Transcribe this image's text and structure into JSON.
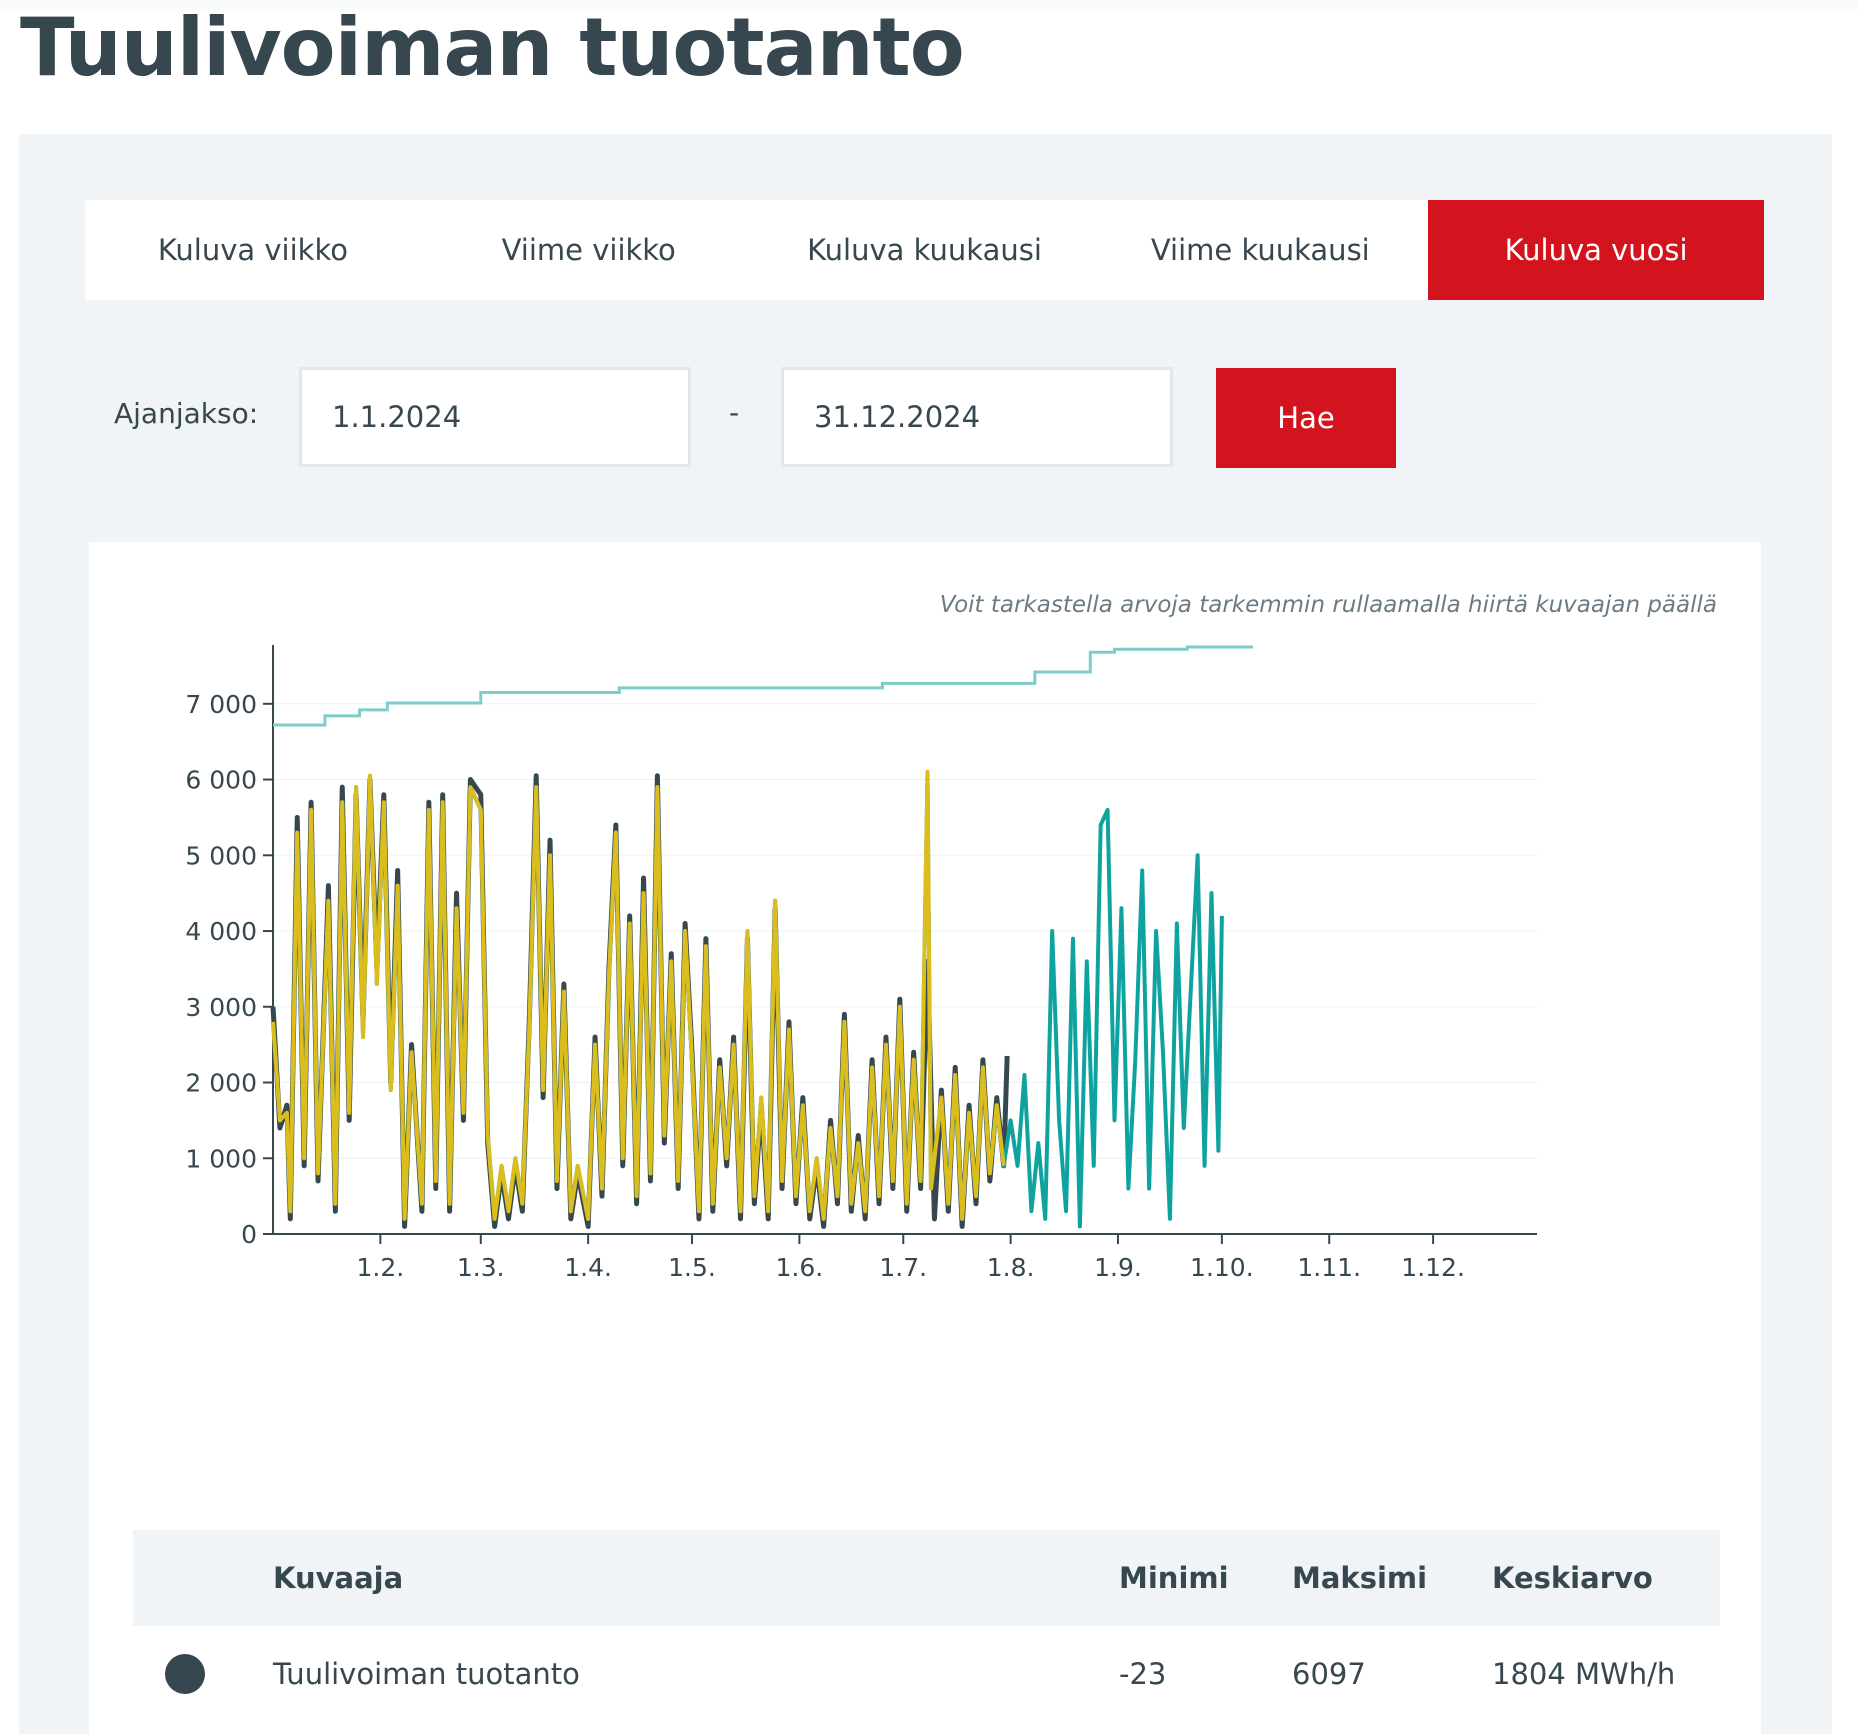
{
  "page": {
    "title": "Tuulivoiman tuotanto"
  },
  "tabs": [
    {
      "label": "Kuluva viikko",
      "active": false
    },
    {
      "label": "Viime viikko",
      "active": false
    },
    {
      "label": "Kuluva kuukausi",
      "active": false
    },
    {
      "label": "Viime kuukausi",
      "active": false
    },
    {
      "label": "Kuluva vuosi",
      "active": true
    }
  ],
  "period": {
    "label": "Ajanjakso:",
    "from": "1.1.2024",
    "separator": "-",
    "to": "31.12.2024",
    "search_label": "Hae"
  },
  "chart": {
    "hint": "Voit tarkastella arvoja tarkemmin rullaamalla hiirtä kuvaajan päällä"
  },
  "colors": {
    "accent": "#d3141f",
    "text": "#37474f",
    "panel": "#f1f4f6",
    "production": "#37474f",
    "forecast_teal": "#0fa3a0",
    "forecast_yellow": "#dbbd1d",
    "capacity": "#7ecdca"
  },
  "chart_data": {
    "type": "line",
    "ylim": [
      0,
      7750
    ],
    "yticks": [
      0,
      1000,
      2000,
      3000,
      4000,
      5000,
      6000,
      7000
    ],
    "ytick_labels": [
      "0",
      "1 000",
      "2 000",
      "3 000",
      "4 000",
      "5 000",
      "6 000",
      "7 000"
    ],
    "xlim": [
      "2024-01-01",
      "2024-12-31"
    ],
    "xticks": [
      "2024-02-01",
      "2024-03-01",
      "2024-04-01",
      "2024-05-01",
      "2024-06-01",
      "2024-07-01",
      "2024-08-01",
      "2024-09-01",
      "2024-10-01",
      "2024-11-01",
      "2024-12-01"
    ],
    "xtick_labels": [
      "1.2.",
      "1.3.",
      "1.4.",
      "1.5.",
      "1.6.",
      "1.7.",
      "1.8.",
      "1.9.",
      "1.10.",
      "1.11.",
      "1.12."
    ],
    "grid": true,
    "capacity_steps": [
      {
        "date": "2024-01-01",
        "value": 6720
      },
      {
        "date": "2024-01-16",
        "value": 6840
      },
      {
        "date": "2024-01-26",
        "value": 6920
      },
      {
        "date": "2024-02-03",
        "value": 7010
      },
      {
        "date": "2024-03-01",
        "value": 7150
      },
      {
        "date": "2024-04-10",
        "value": 7210
      },
      {
        "date": "2024-06-25",
        "value": 7270
      },
      {
        "date": "2024-08-08",
        "value": 7420
      },
      {
        "date": "2024-08-24",
        "value": 7680
      },
      {
        "date": "2024-08-31",
        "value": 7720
      },
      {
        "date": "2024-09-21",
        "value": 7750
      },
      {
        "date": "2024-10-10",
        "value": 7750
      }
    ],
    "production_series": [
      {
        "date": "2024-01-01",
        "value": 3000
      },
      {
        "date": "2024-01-03",
        "value": 1400
      },
      {
        "date": "2024-01-05",
        "value": 1700
      },
      {
        "date": "2024-01-06",
        "value": 200
      },
      {
        "date": "2024-01-08",
        "value": 5500
      },
      {
        "date": "2024-01-10",
        "value": 900
      },
      {
        "date": "2024-01-12",
        "value": 5700
      },
      {
        "date": "2024-01-14",
        "value": 700
      },
      {
        "date": "2024-01-17",
        "value": 4600
      },
      {
        "date": "2024-01-19",
        "value": 300
      },
      {
        "date": "2024-01-21",
        "value": 5900
      },
      {
        "date": "2024-01-23",
        "value": 1500
      },
      {
        "date": "2024-01-25",
        "value": 5800
      },
      {
        "date": "2024-01-27",
        "value": 2800
      },
      {
        "date": "2024-01-29",
        "value": 6000
      },
      {
        "date": "2024-01-31",
        "value": 3500
      },
      {
        "date": "2024-02-02",
        "value": 5800
      },
      {
        "date": "2024-02-04",
        "value": 2000
      },
      {
        "date": "2024-02-06",
        "value": 4800
      },
      {
        "date": "2024-02-08",
        "value": 100
      },
      {
        "date": "2024-02-10",
        "value": 2500
      },
      {
        "date": "2024-02-13",
        "value": 300
      },
      {
        "date": "2024-02-15",
        "value": 5700
      },
      {
        "date": "2024-02-17",
        "value": 600
      },
      {
        "date": "2024-02-19",
        "value": 5800
      },
      {
        "date": "2024-02-21",
        "value": 300
      },
      {
        "date": "2024-02-23",
        "value": 4500
      },
      {
        "date": "2024-02-25",
        "value": 1500
      },
      {
        "date": "2024-02-27",
        "value": 6000
      },
      {
        "date": "2024-03-01",
        "value": 5800
      },
      {
        "date": "2024-03-03",
        "value": 1200
      },
      {
        "date": "2024-03-05",
        "value": 100
      },
      {
        "date": "2024-03-07",
        "value": 800
      },
      {
        "date": "2024-03-09",
        "value": 200
      },
      {
        "date": "2024-03-11",
        "value": 900
      },
      {
        "date": "2024-03-13",
        "value": 300
      },
      {
        "date": "2024-03-15",
        "value": 2800
      },
      {
        "date": "2024-03-17",
        "value": 6050
      },
      {
        "date": "2024-03-19",
        "value": 1800
      },
      {
        "date": "2024-03-21",
        "value": 5200
      },
      {
        "date": "2024-03-23",
        "value": 600
      },
      {
        "date": "2024-03-25",
        "value": 3300
      },
      {
        "date": "2024-03-27",
        "value": 200
      },
      {
        "date": "2024-03-29",
        "value": 800
      },
      {
        "date": "2024-04-01",
        "value": 100
      },
      {
        "date": "2024-04-03",
        "value": 2600
      },
      {
        "date": "2024-04-05",
        "value": 500
      },
      {
        "date": "2024-04-07",
        "value": 3500
      },
      {
        "date": "2024-04-09",
        "value": 5400
      },
      {
        "date": "2024-04-11",
        "value": 900
      },
      {
        "date": "2024-04-13",
        "value": 4200
      },
      {
        "date": "2024-04-15",
        "value": 400
      },
      {
        "date": "2024-04-17",
        "value": 4700
      },
      {
        "date": "2024-04-19",
        "value": 700
      },
      {
        "date": "2024-04-21",
        "value": 6050
      },
      {
        "date": "2024-04-23",
        "value": 1200
      },
      {
        "date": "2024-04-25",
        "value": 3700
      },
      {
        "date": "2024-04-27",
        "value": 600
      },
      {
        "date": "2024-04-29",
        "value": 4100
      },
      {
        "date": "2024-05-01",
        "value": 2400
      },
      {
        "date": "2024-05-03",
        "value": 200
      },
      {
        "date": "2024-05-05",
        "value": 3900
      },
      {
        "date": "2024-05-07",
        "value": 300
      },
      {
        "date": "2024-05-09",
        "value": 2300
      },
      {
        "date": "2024-05-11",
        "value": 900
      },
      {
        "date": "2024-05-13",
        "value": 2600
      },
      {
        "date": "2024-05-15",
        "value": 200
      },
      {
        "date": "2024-05-17",
        "value": 3900
      },
      {
        "date": "2024-05-19",
        "value": 400
      },
      {
        "date": "2024-05-21",
        "value": 1700
      },
      {
        "date": "2024-05-23",
        "value": 200
      },
      {
        "date": "2024-05-25",
        "value": 4300
      },
      {
        "date": "2024-05-27",
        "value": 600
      },
      {
        "date": "2024-05-29",
        "value": 2800
      },
      {
        "date": "2024-05-31",
        "value": 400
      },
      {
        "date": "2024-06-02",
        "value": 1800
      },
      {
        "date": "2024-06-04",
        "value": 200
      },
      {
        "date": "2024-06-06",
        "value": 900
      },
      {
        "date": "2024-06-08",
        "value": 100
      },
      {
        "date": "2024-06-10",
        "value": 1500
      },
      {
        "date": "2024-06-12",
        "value": 400
      },
      {
        "date": "2024-06-14",
        "value": 2900
      },
      {
        "date": "2024-06-16",
        "value": 300
      },
      {
        "date": "2024-06-18",
        "value": 1300
      },
      {
        "date": "2024-06-20",
        "value": 200
      },
      {
        "date": "2024-06-22",
        "value": 2300
      },
      {
        "date": "2024-06-24",
        "value": 400
      },
      {
        "date": "2024-06-26",
        "value": 2600
      },
      {
        "date": "2024-06-28",
        "value": 600
      },
      {
        "date": "2024-06-30",
        "value": 3100
      },
      {
        "date": "2024-07-02",
        "value": 300
      },
      {
        "date": "2024-07-04",
        "value": 2400
      },
      {
        "date": "2024-07-06",
        "value": 600
      },
      {
        "date": "2024-07-08",
        "value": 3600
      },
      {
        "date": "2024-07-10",
        "value": 200
      },
      {
        "date": "2024-07-12",
        "value": 1900
      },
      {
        "date": "2024-07-14",
        "value": 300
      },
      {
        "date": "2024-07-16",
        "value": 2200
      },
      {
        "date": "2024-07-18",
        "value": 100
      },
      {
        "date": "2024-07-20",
        "value": 1700
      },
      {
        "date": "2024-07-22",
        "value": 400
      },
      {
        "date": "2024-07-24",
        "value": 2300
      },
      {
        "date": "2024-07-26",
        "value": 700
      },
      {
        "date": "2024-07-28",
        "value": 1800
      },
      {
        "date": "2024-07-30",
        "value": 900
      },
      {
        "date": "2024-07-31",
        "value": 2350
      }
    ],
    "forecast_series": [
      {
        "date": "2024-01-01",
        "value": 2800
      },
      {
        "date": "2024-01-03",
        "value": 1500
      },
      {
        "date": "2024-01-05",
        "value": 1600
      },
      {
        "date": "2024-01-06",
        "value": 300
      },
      {
        "date": "2024-01-08",
        "value": 5300
      },
      {
        "date": "2024-01-10",
        "value": 1000
      },
      {
        "date": "2024-01-12",
        "value": 5600
      },
      {
        "date": "2024-01-14",
        "value": 800
      },
      {
        "date": "2024-01-17",
        "value": 4400
      },
      {
        "date": "2024-01-19",
        "value": 400
      },
      {
        "date": "2024-01-21",
        "value": 5700
      },
      {
        "date": "2024-01-23",
        "value": 1600
      },
      {
        "date": "2024-01-25",
        "value": 5900
      },
      {
        "date": "2024-01-27",
        "value": 2600
      },
      {
        "date": "2024-01-29",
        "value": 6050
      },
      {
        "date": "2024-01-31",
        "value": 3300
      },
      {
        "date": "2024-02-02",
        "value": 5700
      },
      {
        "date": "2024-02-04",
        "value": 1900
      },
      {
        "date": "2024-02-06",
        "value": 4600
      },
      {
        "date": "2024-02-08",
        "value": 200
      },
      {
        "date": "2024-02-10",
        "value": 2400
      },
      {
        "date": "2024-02-13",
        "value": 400
      },
      {
        "date": "2024-02-15",
        "value": 5600
      },
      {
        "date": "2024-02-17",
        "value": 700
      },
      {
        "date": "2024-02-19",
        "value": 5700
      },
      {
        "date": "2024-02-21",
        "value": 400
      },
      {
        "date": "2024-02-23",
        "value": 4300
      },
      {
        "date": "2024-02-25",
        "value": 1600
      },
      {
        "date": "2024-02-27",
        "value": 5900
      },
      {
        "date": "2024-03-01",
        "value": 5600
      },
      {
        "date": "2024-03-03",
        "value": 1300
      },
      {
        "date": "2024-03-05",
        "value": 200
      },
      {
        "date": "2024-03-07",
        "value": 900
      },
      {
        "date": "2024-03-09",
        "value": 300
      },
      {
        "date": "2024-03-11",
        "value": 1000
      },
      {
        "date": "2024-03-13",
        "value": 400
      },
      {
        "date": "2024-03-15",
        "value": 2700
      },
      {
        "date": "2024-03-17",
        "value": 5900
      },
      {
        "date": "2024-03-19",
        "value": 1900
      },
      {
        "date": "2024-03-21",
        "value": 5000
      },
      {
        "date": "2024-03-23",
        "value": 700
      },
      {
        "date": "2024-03-25",
        "value": 3200
      },
      {
        "date": "2024-03-27",
        "value": 300
      },
      {
        "date": "2024-03-29",
        "value": 900
      },
      {
        "date": "2024-04-01",
        "value": 200
      },
      {
        "date": "2024-04-03",
        "value": 2500
      },
      {
        "date": "2024-04-05",
        "value": 600
      },
      {
        "date": "2024-04-07",
        "value": 3400
      },
      {
        "date": "2024-04-09",
        "value": 5300
      },
      {
        "date": "2024-04-11",
        "value": 1000
      },
      {
        "date": "2024-04-13",
        "value": 4100
      },
      {
        "date": "2024-04-15",
        "value": 500
      },
      {
        "date": "2024-04-17",
        "value": 4500
      },
      {
        "date": "2024-04-19",
        "value": 800
      },
      {
        "date": "2024-04-21",
        "value": 5900
      },
      {
        "date": "2024-04-23",
        "value": 1300
      },
      {
        "date": "2024-04-25",
        "value": 3600
      },
      {
        "date": "2024-04-27",
        "value": 700
      },
      {
        "date": "2024-04-29",
        "value": 4000
      },
      {
        "date": "2024-05-01",
        "value": 2300
      },
      {
        "date": "2024-05-03",
        "value": 300
      },
      {
        "date": "2024-05-05",
        "value": 3800
      },
      {
        "date": "2024-05-07",
        "value": 400
      },
      {
        "date": "2024-05-09",
        "value": 2200
      },
      {
        "date": "2024-05-11",
        "value": 1000
      },
      {
        "date": "2024-05-13",
        "value": 2500
      },
      {
        "date": "2024-05-15",
        "value": 300
      },
      {
        "date": "2024-05-17",
        "value": 4000
      },
      {
        "date": "2024-05-19",
        "value": 500
      },
      {
        "date": "2024-05-21",
        "value": 1800
      },
      {
        "date": "2024-05-23",
        "value": 300
      },
      {
        "date": "2024-05-25",
        "value": 4400
      },
      {
        "date": "2024-05-27",
        "value": 700
      },
      {
        "date": "2024-05-29",
        "value": 2700
      },
      {
        "date": "2024-05-31",
        "value": 500
      },
      {
        "date": "2024-06-02",
        "value": 1700
      },
      {
        "date": "2024-06-04",
        "value": 300
      },
      {
        "date": "2024-06-06",
        "value": 1000
      },
      {
        "date": "2024-06-08",
        "value": 200
      },
      {
        "date": "2024-06-10",
        "value": 1400
      },
      {
        "date": "2024-06-12",
        "value": 500
      },
      {
        "date": "2024-06-14",
        "value": 2800
      },
      {
        "date": "2024-06-16",
        "value": 400
      },
      {
        "date": "2024-06-18",
        "value": 1200
      },
      {
        "date": "2024-06-20",
        "value": 300
      },
      {
        "date": "2024-06-22",
        "value": 2200
      },
      {
        "date": "2024-06-24",
        "value": 500
      },
      {
        "date": "2024-06-26",
        "value": 2500
      },
      {
        "date": "2024-06-28",
        "value": 700
      },
      {
        "date": "2024-06-30",
        "value": 3000
      },
      {
        "date": "2024-07-02",
        "value": 400
      },
      {
        "date": "2024-07-04",
        "value": 2300
      },
      {
        "date": "2024-07-06",
        "value": 700
      },
      {
        "date": "2024-07-08",
        "value": 6100
      },
      {
        "date": "2024-07-09",
        "value": 600
      },
      {
        "date": "2024-07-12",
        "value": 1800
      },
      {
        "date": "2024-07-14",
        "value": 400
      },
      {
        "date": "2024-07-16",
        "value": 2100
      },
      {
        "date": "2024-07-18",
        "value": 200
      },
      {
        "date": "2024-07-20",
        "value": 1600
      },
      {
        "date": "2024-07-22",
        "value": 500
      },
      {
        "date": "2024-07-24",
        "value": 2200
      },
      {
        "date": "2024-07-26",
        "value": 800
      },
      {
        "date": "2024-07-28",
        "value": 1700
      },
      {
        "date": "2024-07-30",
        "value": 900
      },
      {
        "date": "2024-08-01",
        "value": 1500
      },
      {
        "date": "2024-08-03",
        "value": 900
      },
      {
        "date": "2024-08-05",
        "value": 2100
      },
      {
        "date": "2024-08-07",
        "value": 300
      },
      {
        "date": "2024-08-09",
        "value": 1200
      },
      {
        "date": "2024-08-11",
        "value": 200
      },
      {
        "date": "2024-08-13",
        "value": 4000
      },
      {
        "date": "2024-08-15",
        "value": 1500
      },
      {
        "date": "2024-08-17",
        "value": 300
      },
      {
        "date": "2024-08-19",
        "value": 3900
      },
      {
        "date": "2024-08-21",
        "value": 100
      },
      {
        "date": "2024-08-23",
        "value": 3600
      },
      {
        "date": "2024-08-25",
        "value": 900
      },
      {
        "date": "2024-08-27",
        "value": 5400
      },
      {
        "date": "2024-08-29",
        "value": 5600
      },
      {
        "date": "2024-08-31",
        "value": 1500
      },
      {
        "date": "2024-09-02",
        "value": 4300
      },
      {
        "date": "2024-09-04",
        "value": 600
      },
      {
        "date": "2024-09-06",
        "value": 2300
      },
      {
        "date": "2024-09-08",
        "value": 4800
      },
      {
        "date": "2024-09-10",
        "value": 600
      },
      {
        "date": "2024-09-12",
        "value": 4000
      },
      {
        "date": "2024-09-14",
        "value": 2400
      },
      {
        "date": "2024-09-16",
        "value": 200
      },
      {
        "date": "2024-09-18",
        "value": 4100
      },
      {
        "date": "2024-09-20",
        "value": 1400
      },
      {
        "date": "2024-09-22",
        "value": 3200
      },
      {
        "date": "2024-09-24",
        "value": 5000
      },
      {
        "date": "2024-09-26",
        "value": 900
      },
      {
        "date": "2024-09-28",
        "value": 4500
      },
      {
        "date": "2024-09-30",
        "value": 1100
      },
      {
        "date": "2024-10-01",
        "value": 4200
      }
    ],
    "forecast_overlay_until": "2024-07-31"
  },
  "stats": {
    "headers": {
      "chart": "Kuvaaja",
      "min": "Minimi",
      "max": "Maksimi",
      "avg": "Keskiarvo"
    },
    "rows": [
      {
        "name": "Tuulivoiman tuotanto",
        "min": "-23",
        "max": "6097",
        "avg": "1804 MWh/h"
      }
    ]
  }
}
